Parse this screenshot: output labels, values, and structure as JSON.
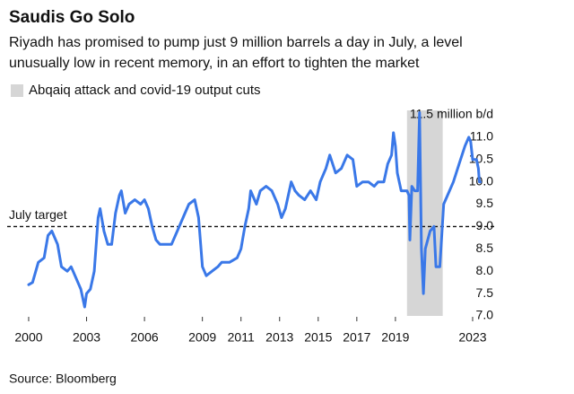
{
  "chart_data": {
    "type": "line",
    "title": "Saudis Go Solo",
    "subtitle": [
      "Riyadh has promised to pump just 9 million barrels a day in July, a level",
      "unusually low in recent memory, in an effort to tighten the market"
    ],
    "source": "Source: Bloomberg",
    "color": "#3a78e8",
    "x": [
      2000.0,
      2000.2,
      2000.5,
      2000.8,
      2001.0,
      2001.2,
      2001.5,
      2001.7,
      2002.0,
      2002.2,
      2002.5,
      2002.7,
      2002.9,
      2003.0,
      2003.2,
      2003.4,
      2003.6,
      2003.7,
      2003.9,
      2004.1,
      2004.3,
      2004.5,
      2004.7,
      2004.8,
      2005.0,
      2005.2,
      2005.5,
      2005.8,
      2006.0,
      2006.2,
      2006.4,
      2006.6,
      2006.8,
      2007.0,
      2007.4,
      2007.7,
      2008.0,
      2008.3,
      2008.6,
      2008.8,
      2009.0,
      2009.2,
      2009.5,
      2009.8,
      2010.0,
      2010.4,
      2010.8,
      2011.0,
      2011.2,
      2011.4,
      2011.5,
      2011.8,
      2012.0,
      2012.3,
      2012.6,
      2012.9,
      2013.1,
      2013.3,
      2013.6,
      2013.8,
      2014.0,
      2014.3,
      2014.6,
      2014.9,
      2015.1,
      2015.4,
      2015.6,
      2015.9,
      2016.2,
      2016.5,
      2016.8,
      2017.0,
      2017.3,
      2017.6,
      2017.9,
      2018.1,
      2018.4,
      2018.6,
      2018.8,
      2018.9,
      2019.0,
      2019.1,
      2019.3,
      2019.6,
      2019.7,
      2019.75,
      2019.85,
      2020.0,
      2020.15,
      2020.25,
      2020.35,
      2020.45,
      2020.55,
      2020.8,
      2021.0,
      2021.1,
      2021.3,
      2021.5,
      2021.7,
      2022.0,
      2022.3,
      2022.6,
      2022.8,
      2022.9,
      2023.0,
      2023.2,
      2023.3,
      2023.35,
      2023.4
    ],
    "values": [
      7.7,
      7.75,
      8.2,
      8.3,
      8.8,
      8.9,
      8.6,
      8.1,
      8.0,
      8.1,
      7.8,
      7.6,
      7.2,
      7.5,
      7.6,
      8.0,
      9.2,
      9.4,
      8.9,
      8.6,
      8.6,
      9.3,
      9.7,
      9.8,
      9.3,
      9.5,
      9.6,
      9.5,
      9.6,
      9.4,
      9.0,
      8.7,
      8.6,
      8.6,
      8.6,
      8.9,
      9.2,
      9.5,
      9.6,
      9.2,
      8.1,
      7.9,
      8.0,
      8.1,
      8.2,
      8.2,
      8.3,
      8.5,
      9.0,
      9.4,
      9.8,
      9.5,
      9.8,
      9.9,
      9.8,
      9.5,
      9.2,
      9.4,
      10.0,
      9.8,
      9.7,
      9.6,
      9.8,
      9.6,
      10.0,
      10.3,
      10.6,
      10.2,
      10.3,
      10.6,
      10.5,
      9.9,
      10.0,
      10.0,
      9.9,
      10.0,
      10.0,
      10.4,
      10.6,
      11.1,
      10.8,
      10.2,
      9.8,
      9.8,
      9.7,
      8.7,
      9.9,
      9.8,
      9.8,
      11.55,
      8.5,
      7.5,
      8.5,
      8.9,
      9.0,
      8.1,
      8.1,
      9.5,
      9.7,
      10.0,
      10.4,
      10.8,
      11.0,
      10.9,
      10.5,
      10.5,
      10.3,
      10.0,
      10.0
    ],
    "xlim": [
      1999.5,
      2024.0
    ],
    "xticks": [
      2000,
      2003,
      2006,
      2009,
      2011,
      2013,
      2015,
      2017,
      2019,
      2023
    ],
    "ylim": [
      7.0,
      11.6
    ],
    "yticks": [
      {
        "value": 7.0,
        "label": "7.0"
      },
      {
        "value": 7.5,
        "label": "7.5"
      },
      {
        "value": 8.0,
        "label": "8.0"
      },
      {
        "value": 8.5,
        "label": "8.5"
      },
      {
        "value": 9.0,
        "label": "9.0"
      },
      {
        "value": 9.5,
        "label": "9.5"
      },
      {
        "value": 10.0,
        "label": "10.0"
      },
      {
        "value": 10.5,
        "label": "10.5"
      },
      {
        "value": 11.0,
        "label": "11.0"
      },
      {
        "value": 11.5,
        "label": "11.5 million b/d"
      }
    ],
    "shaded_region": {
      "label": "Abqaiq attack and covid-19 output cuts",
      "start": 2019.6,
      "end": 2021.45,
      "color": "#d6d6d6"
    },
    "reference_line": {
      "value": 9.0,
      "label": "July target"
    }
  }
}
